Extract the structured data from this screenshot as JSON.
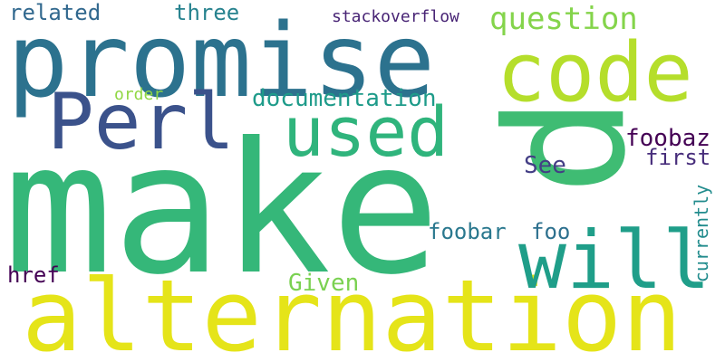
{
  "words": {
    "make": {
      "text": "make",
      "color": "#35b779"
    },
    "p": {
      "text": "p",
      "color": "#3fbc73"
    },
    "promise": {
      "text": "promise",
      "color": "#2c728e"
    },
    "alternation": {
      "text": "alternation",
      "color": "#e5e419"
    },
    "code": {
      "text": "code",
      "color": "#b5de2b"
    },
    "will": {
      "text": "will",
      "color": "#1f9e89"
    },
    "used": {
      "text": "used",
      "color": "#2fb47c"
    },
    "perl": {
      "text": "Perl",
      "color": "#3b528b"
    },
    "question": {
      "text": "question",
      "color": "#84d44b"
    },
    "documentation": {
      "text": "documentation",
      "color": "#1e9b8a"
    },
    "related": {
      "text": "related",
      "color": "#31688e"
    },
    "three": {
      "text": "three",
      "color": "#26828e"
    },
    "stackoverflow": {
      "text": "stackoverflow",
      "color": "#482475"
    },
    "foobaz": {
      "text": "foobaz",
      "color": "#440154"
    },
    "first": {
      "text": "first",
      "color": "#472d7b"
    },
    "see": {
      "text": "See",
      "color": "#433e85"
    },
    "foobar": {
      "text": "foobar",
      "color": "#2a788e"
    },
    "foo": {
      "text": "foo",
      "color": "#2d708e"
    },
    "currently": {
      "text": "currently",
      "color": "#228c8d"
    },
    "href": {
      "text": "href",
      "color": "#440154"
    },
    "given": {
      "text": "Given",
      "color": "#7ad151"
    },
    "order": {
      "text": "order",
      "color": "#90d743"
    }
  }
}
